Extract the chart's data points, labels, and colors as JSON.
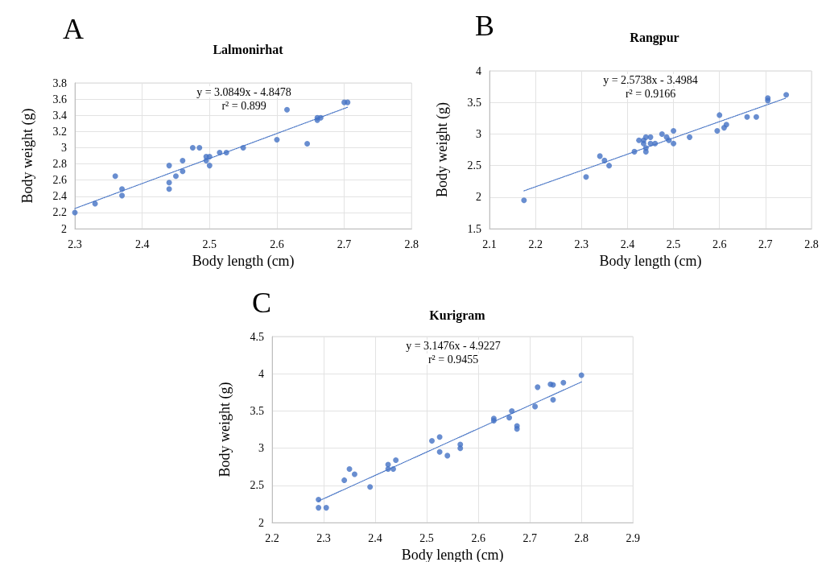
{
  "chart_data": [
    {
      "type": "scatter",
      "title": "Lalmonirhat",
      "xlabel": "Body length (cm)",
      "ylabel": "Body weight (g)",
      "annotations": [
        "A",
        "y = 3.0849x - 4.8478",
        "r² = 0.899"
      ],
      "xlim": [
        2.3,
        2.8
      ],
      "xticks": [
        2.3,
        2.4,
        2.5,
        2.6,
        2.7,
        2.8
      ],
      "ylim": [
        2,
        3.8
      ],
      "yticks": [
        2,
        2.2,
        2.4,
        2.6,
        2.8,
        3,
        3.2,
        3.4,
        3.6,
        3.8
      ],
      "grid": true,
      "marker": "circle",
      "series": [
        {
          "color": "#4472c4",
          "x": [
            2.3,
            2.33,
            2.36,
            2.37,
            2.37,
            2.44,
            2.44,
            2.44,
            2.45,
            2.46,
            2.46,
            2.475,
            2.485,
            2.495,
            2.495,
            2.5,
            2.5,
            2.515,
            2.525,
            2.55,
            2.6,
            2.615,
            2.645,
            2.66,
            2.66,
            2.665,
            2.7,
            2.705
          ],
          "values": [
            2.2,
            2.31,
            2.65,
            2.49,
            2.41,
            2.78,
            2.57,
            2.49,
            2.65,
            2.84,
            2.71,
            3,
            3,
            2.89,
            2.84,
            2.89,
            2.78,
            2.94,
            2.94,
            3,
            3.1,
            3.47,
            3.05,
            3.37,
            3.34,
            3.37,
            3.56,
            3.56
          ]
        },
        {
          "type": "line",
          "color": "#4472c4",
          "marker": "none",
          "line_style": "dotted",
          "x": [
            2.3,
            2.705
          ],
          "values": [
            2.25,
            3.5
          ]
        }
      ]
    },
    {
      "type": "scatter",
      "title": "Rangpur",
      "xlabel": "Body length (cm)",
      "ylabel": "Body weight (g)",
      "annotations": [
        "B",
        "y = 2.5738x - 3.4984",
        "r² = 0.9166"
      ],
      "xlim": [
        2.1,
        2.8
      ],
      "xticks": [
        2.1,
        2.2,
        2.3,
        2.4,
        2.5,
        2.6,
        2.7,
        2.8
      ],
      "ylim": [
        1.5,
        4
      ],
      "yticks": [
        1.5,
        2,
        2.5,
        3,
        3.5,
        4
      ],
      "grid": true,
      "marker": "circle",
      "series": [
        {
          "color": "#4472c4",
          "x": [
            2.175,
            2.31,
            2.34,
            2.35,
            2.36,
            2.415,
            2.425,
            2.435,
            2.435,
            2.44,
            2.44,
            2.44,
            2.45,
            2.45,
            2.46,
            2.475,
            2.485,
            2.49,
            2.5,
            2.5,
            2.535,
            2.595,
            2.6,
            2.61,
            2.615,
            2.66,
            2.68,
            2.705,
            2.705,
            2.745
          ],
          "values": [
            1.95,
            2.32,
            2.65,
            2.58,
            2.5,
            2.72,
            2.9,
            2.9,
            2.85,
            2.95,
            2.78,
            2.72,
            2.95,
            2.85,
            2.85,
            3,
            2.95,
            2.9,
            3.05,
            2.85,
            2.95,
            3.05,
            3.3,
            3.1,
            3.15,
            3.27,
            3.27,
            3.57,
            3.53,
            3.62
          ]
        },
        {
          "type": "line",
          "color": "#4472c4",
          "marker": "none",
          "line_style": "dotted",
          "x": [
            2.175,
            2.745
          ],
          "values": [
            2.1,
            3.57
          ]
        }
      ]
    },
    {
      "type": "scatter",
      "title": "Kurigram",
      "xlabel": "Body length (cm)",
      "ylabel": "Body weight (g)",
      "annotations": [
        "C",
        "y = 3.1476x - 4.9227",
        "r² = 0.9455"
      ],
      "xlim": [
        2.2,
        2.9
      ],
      "xticks": [
        2.2,
        2.3,
        2.4,
        2.5,
        2.6,
        2.7,
        2.8,
        2.9
      ],
      "ylim": [
        2,
        4.5
      ],
      "yticks": [
        2,
        2.5,
        3,
        3.5,
        4,
        4.5
      ],
      "grid": true,
      "marker": "circle",
      "series": [
        {
          "color": "#4472c4",
          "x": [
            2.29,
            2.29,
            2.305,
            2.34,
            2.35,
            2.36,
            2.39,
            2.425,
            2.425,
            2.435,
            2.44,
            2.51,
            2.525,
            2.525,
            2.54,
            2.565,
            2.565,
            2.63,
            2.63,
            2.66,
            2.665,
            2.675,
            2.675,
            2.71,
            2.715,
            2.74,
            2.745,
            2.745,
            2.765,
            2.8
          ],
          "values": [
            2.31,
            2.2,
            2.2,
            2.57,
            2.72,
            2.65,
            2.48,
            2.78,
            2.72,
            2.72,
            2.84,
            3.1,
            3.15,
            2.95,
            2.9,
            3.05,
            3,
            3.4,
            3.37,
            3.41,
            3.5,
            3.3,
            3.26,
            3.56,
            3.82,
            3.86,
            3.85,
            3.65,
            3.88,
            3.98
          ]
        },
        {
          "type": "line",
          "color": "#4472c4",
          "marker": "none",
          "line_style": "dotted",
          "x": [
            2.29,
            2.8
          ],
          "values": [
            2.29,
            3.89
          ]
        }
      ]
    }
  ]
}
